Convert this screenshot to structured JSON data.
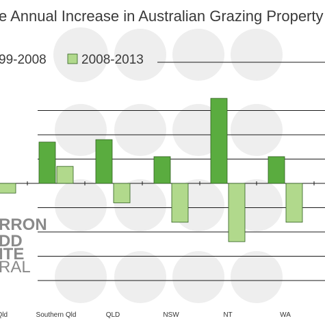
{
  "chart_data": {
    "type": "bar",
    "title": "e Annual Increase in Australian Grazing Property",
    "categories": [
      "al Qld",
      "Southern Qld",
      "QLD",
      "NSW",
      "NT",
      "WA"
    ],
    "series": [
      {
        "name": "99-2008",
        "values": [
          -11,
          17,
          18,
          11,
          35,
          11
        ]
      },
      {
        "name": "2008-2013",
        "values": [
          -4,
          7,
          -8,
          -16,
          -24,
          -16
        ]
      }
    ],
    "ylim": [
      -40,
      40
    ],
    "grid": true,
    "legend_position": "top",
    "colors": {
      "series1": "#5aac3f",
      "series2": "#b1d98c",
      "bar_edge": "#2f5f1f",
      "grid": "#1a1a1a",
      "watermark": "#e0e0e0"
    }
  },
  "watermark": {
    "lines": [
      "RRON",
      "DD",
      "ITE",
      "RAL"
    ]
  }
}
